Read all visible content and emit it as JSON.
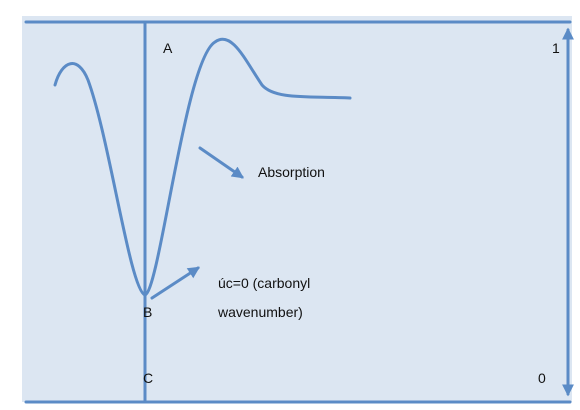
{
  "labels": {
    "a": "A",
    "b": "B",
    "c": "C",
    "top": "1",
    "bottom": "0",
    "absorption": "Absorption",
    "carbonyl_line1": "úc=0 (carbonyl",
    "carbonyl_line2": "wavenumber)"
  }
}
